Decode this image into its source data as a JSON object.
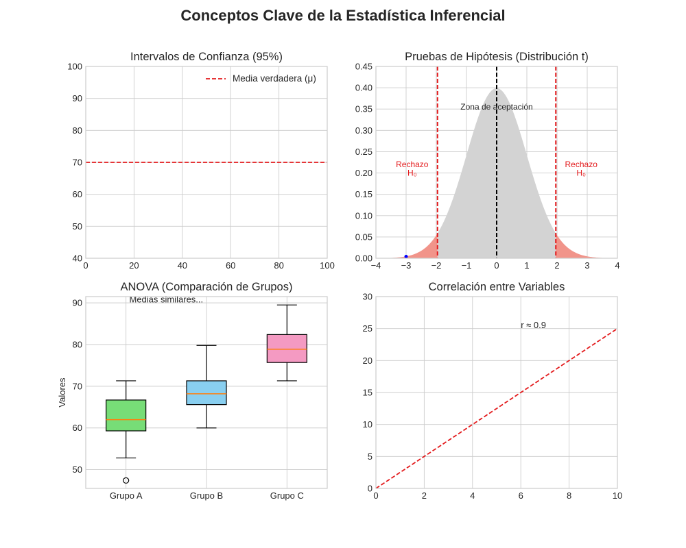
{
  "suptitle": "Conceptos Clave de la Estadística Inferencial",
  "chart_data": [
    {
      "id": "confidence",
      "type": "line",
      "title": "Intervalos de Confianza (95%)",
      "xlim": [
        0,
        100
      ],
      "ylim": [
        40,
        100
      ],
      "xticks": [
        0,
        20,
        40,
        60,
        80,
        100
      ],
      "yticks": [
        40,
        50,
        60,
        70,
        80,
        90,
        100
      ],
      "grid": true,
      "legend_position": "top-right",
      "series": [
        {
          "name": "Media verdadera (μ)",
          "style": "dashed",
          "color": "#e31a1c",
          "x": [
            0,
            100
          ],
          "y": [
            70,
            70
          ]
        }
      ]
    },
    {
      "id": "hypothesis",
      "type": "area",
      "title": "Pruebas de Hipótesis (Distribución t)",
      "xlim": [
        -4,
        4
      ],
      "ylim": [
        0,
        0.45
      ],
      "xticks": [
        -4,
        -3,
        -2,
        -1,
        0,
        1,
        2,
        3,
        4
      ],
      "xtick_labels": [
        "−4",
        "−3",
        "−2",
        "−1",
        "0",
        "1",
        "2",
        "3",
        "4"
      ],
      "yticks": [
        0,
        0.05,
        0.1,
        0.15,
        0.2,
        0.25,
        0.3,
        0.35,
        0.4,
        0.45
      ],
      "ytick_labels": [
        "0.00",
        "0.05",
        "0.10",
        "0.15",
        "0.20",
        "0.25",
        "0.30",
        "0.35",
        "0.40",
        "0.45"
      ],
      "grid": true,
      "critical_values": [
        -1.96,
        1.96
      ],
      "center_line": 0,
      "point": {
        "x": -3.0,
        "y": 0.004
      },
      "annotations": [
        {
          "text": "Zona de aceptación",
          "x": 0,
          "y": 0.355
        },
        {
          "text": "Rechazo",
          "x": -2.8,
          "y": 0.22,
          "color": "#e31a1c"
        },
        {
          "text": "H₀",
          "x": -2.8,
          "y": 0.2,
          "color": "#e31a1c"
        },
        {
          "text": "Rechazo",
          "x": 2.8,
          "y": 0.22,
          "color": "#e31a1c"
        },
        {
          "text": "H₀",
          "x": 2.8,
          "y": 0.2,
          "color": "#e31a1c"
        }
      ],
      "colors": {
        "acceptance": "#d3d3d3",
        "rejection": "#f1948a",
        "critical": "#e31a1c",
        "center": "#000000",
        "point": "#0000ff"
      }
    },
    {
      "id": "anova",
      "type": "box",
      "title": "ANOVA (Comparación de Grupos)",
      "ylabel": "Valores",
      "ylim": [
        45.5,
        91.5
      ],
      "yticks": [
        50,
        60,
        70,
        80,
        90
      ],
      "grid": true,
      "annotation": {
        "text": "Medias similares...",
        "x": 0.5,
        "y": 90.8
      },
      "categories": [
        "Grupo A",
        "Grupo B",
        "Grupo C"
      ],
      "boxes": [
        {
          "whisker_low": 52.8,
          "q1": 59.3,
          "median": 62.0,
          "q3": 66.7,
          "whisker_high": 71.3,
          "outliers": [
            47.4
          ],
          "color": "#77dd77"
        },
        {
          "whisker_low": 60.0,
          "q1": 65.6,
          "median": 68.2,
          "q3": 71.3,
          "whisker_high": 79.8,
          "outliers": [],
          "color": "#89cff0"
        },
        {
          "whisker_low": 71.3,
          "q1": 75.7,
          "median": 78.9,
          "q3": 82.4,
          "whisker_high": 89.5,
          "outliers": [],
          "color": "#f49ac2"
        }
      ],
      "median_color": "#ff7f0e"
    },
    {
      "id": "correlation",
      "type": "line",
      "title": "Correlación entre Variables",
      "xlim": [
        0,
        10
      ],
      "ylim": [
        0,
        30
      ],
      "xticks": [
        0,
        2,
        4,
        6,
        8,
        10
      ],
      "yticks": [
        0,
        5,
        10,
        15,
        20,
        25,
        30
      ],
      "grid": true,
      "series": [
        {
          "style": "dashed",
          "color": "#e31a1c",
          "x": [
            0,
            10
          ],
          "y": [
            0,
            25
          ]
        }
      ],
      "annotation": {
        "text": "r ≈ 0.9",
        "x": 6.0,
        "y": 25.5
      }
    }
  ]
}
